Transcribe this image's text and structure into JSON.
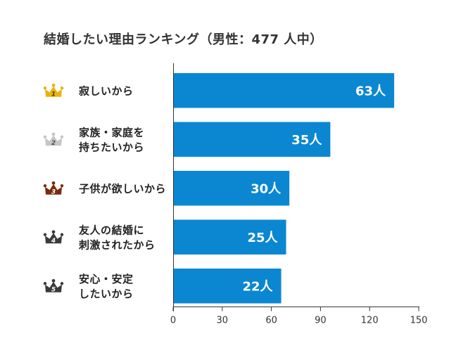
{
  "chart_data": {
    "type": "bar",
    "orientation": "horizontal",
    "title": "結婚したい理由ランキング（男性：477 人中）",
    "categories": [
      "寂しいから",
      "家族・家庭を\n持ちたいから",
      "子供が欲しいから",
      "友人の結婚に\n刺激されたから",
      "安心・安定\nしたいから"
    ],
    "ranks": [
      "1",
      "2",
      "3",
      "4",
      "5"
    ],
    "values": [
      63,
      35,
      30,
      25,
      22
    ],
    "value_unit": "人",
    "bar_lengths": [
      135,
      96,
      71,
      69,
      66
    ],
    "xlim": [
      0,
      150
    ],
    "xticks": [
      0,
      30,
      60,
      90,
      120,
      150
    ],
    "grid": false,
    "legend": "none"
  },
  "icons": {
    "rank_badge": "crown-icon"
  },
  "colors": {
    "bar": "#0b87d1",
    "bar_label": "#ffffff",
    "text": "#222222",
    "axis": "#333333",
    "crowns": [
      "#e8b30f",
      "#c6c6c6",
      "#7a2a0d",
      "#3a3a3a",
      "#3a3a3a"
    ],
    "crown_numbers": [
      "#5a3c00",
      "#555555",
      "#ffffff",
      "#ffffff",
      "#ffffff"
    ]
  }
}
